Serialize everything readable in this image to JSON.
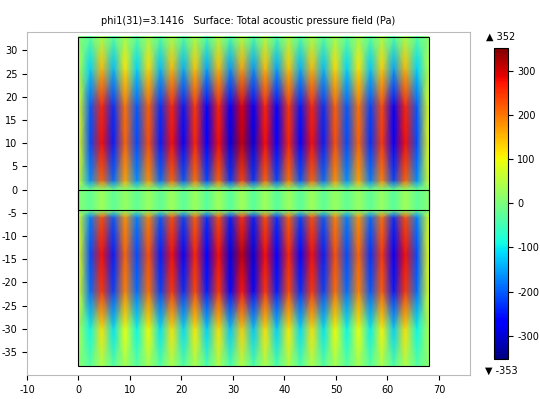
{
  "chart_data": {
    "type": "heatmap",
    "title": "phi1(31)=3.1416   Surface: Total acoustic pressure field (Pa)",
    "xlim": [
      -10,
      76
    ],
    "xticks": [
      -10,
      0,
      10,
      20,
      30,
      40,
      50,
      60,
      70
    ],
    "ylim": [
      -40,
      34
    ],
    "yticks": [
      -35,
      -30,
      -25,
      -20,
      -15,
      -10,
      -5,
      0,
      5,
      10,
      15,
      20,
      25,
      30
    ],
    "x": [
      0,
      2.267,
      4.533,
      6.8,
      9.067,
      11.333,
      13.6,
      15.867,
      18.133,
      20.4,
      22.667,
      24.933,
      27.2,
      29.467,
      31.733,
      34,
      36.267,
      38.533,
      40.8,
      43.067,
      45.333,
      47.6,
      49.867,
      52.133,
      54.4,
      56.667,
      58.933,
      61.2,
      63.467,
      65.733,
      68
    ],
    "y": [
      -38,
      -30,
      -22,
      -14,
      -6,
      -4.5,
      0,
      2,
      10,
      18,
      26,
      33
    ],
    "cells": [
      [
        15,
        -36,
        46,
        -41,
        36,
        -36,
        38,
        -41,
        46,
        -43,
        43,
        -46,
        46,
        -48,
        51,
        -48,
        46,
        -46,
        43,
        -43,
        46,
        -41,
        38,
        -36,
        36,
        -38,
        41,
        -46,
        46,
        -36,
        15
      ],
      [
        41,
        -95,
        122,
        -109,
        95,
        -95,
        102,
        -109,
        122,
        -116,
        116,
        -122,
        122,
        -129,
        136,
        -129,
        122,
        -122,
        116,
        -116,
        122,
        -109,
        102,
        -95,
        95,
        -102,
        109,
        -122,
        122,
        -95,
        41
      ],
      [
        82,
        -190,
        245,
        -218,
        190,
        -190,
        204,
        -218,
        245,
        -231,
        231,
        -245,
        245,
        -258,
        272,
        -258,
        245,
        -245,
        231,
        -231,
        245,
        -218,
        204,
        -190,
        190,
        -204,
        218,
        -245,
        245,
        -190,
        82
      ],
      [
        92,
        -214,
        275,
        -245,
        214,
        -214,
        230,
        -245,
        275,
        -260,
        260,
        -275,
        275,
        -291,
        306,
        -291,
        275,
        -275,
        260,
        -260,
        275,
        -245,
        230,
        -214,
        214,
        -230,
        245,
        -275,
        275,
        -214,
        92
      ],
      [
        77,
        -179,
        230,
        -204,
        179,
        -179,
        191,
        -204,
        230,
        -217,
        217,
        -230,
        230,
        -242,
        255,
        -242,
        230,
        -230,
        217,
        -217,
        230,
        -204,
        191,
        -179,
        179,
        -191,
        204,
        -230,
        230,
        -179,
        77
      ],
      [
        10,
        -24,
        31,
        -27,
        24,
        -24,
        26,
        -27,
        31,
        -29,
        29,
        -31,
        31,
        -32,
        34,
        -32,
        31,
        -31,
        29,
        -29,
        31,
        -27,
        26,
        -24,
        24,
        -26,
        27,
        -31,
        31,
        -24,
        10
      ],
      [
        10,
        -24,
        31,
        -27,
        24,
        -24,
        26,
        -27,
        31,
        -29,
        29,
        -31,
        31,
        -32,
        34,
        -32,
        31,
        -31,
        29,
        -29,
        31,
        -27,
        26,
        -24,
        24,
        -26,
        27,
        -31,
        31,
        -24,
        10
      ],
      [
        71,
        -167,
        214,
        -190,
        167,
        -167,
        179,
        -190,
        214,
        -202,
        202,
        -214,
        214,
        -226,
        238,
        -226,
        214,
        -214,
        202,
        -202,
        214,
        -190,
        179,
        -167,
        167,
        -179,
        190,
        -214,
        214,
        -167,
        71
      ],
      [
        92,
        -214,
        275,
        -245,
        214,
        -214,
        230,
        -245,
        275,
        -260,
        260,
        -275,
        275,
        -291,
        306,
        -291,
        275,
        -275,
        260,
        -260,
        275,
        -245,
        230,
        -214,
        214,
        -230,
        245,
        -275,
        275,
        -214,
        92
      ],
      [
        87,
        -202,
        260,
        -231,
        202,
        -202,
        217,
        -231,
        260,
        -246,
        246,
        -260,
        260,
        -275,
        289,
        -275,
        260,
        -260,
        246,
        -246,
        260,
        -231,
        217,
        -202,
        202,
        -217,
        231,
        -260,
        260,
        -202,
        87
      ],
      [
        51,
        -119,
        153,
        -136,
        119,
        -119,
        128,
        -136,
        153,
        -145,
        145,
        -153,
        153,
        -162,
        170,
        -162,
        153,
        -153,
        145,
        -145,
        153,
        -136,
        128,
        -119,
        119,
        -128,
        136,
        -153,
        153,
        -119,
        51
      ],
      [
        15,
        -36,
        46,
        -41,
        36,
        -36,
        38,
        -41,
        46,
        -43,
        43,
        -46,
        46,
        -48,
        51,
        -48,
        46,
        -46,
        43,
        -43,
        46,
        -41,
        38,
        -36,
        36,
        -38,
        41,
        -46,
        46,
        -36,
        15
      ]
    ],
    "plate": {
      "x": [
        0,
        68
      ],
      "y": [
        -4.5,
        0
      ]
    },
    "colorbar": {
      "lim": [
        -353,
        352
      ],
      "ticks": [
        -300,
        -200,
        -100,
        0,
        100,
        200,
        300
      ],
      "max_marker": "▲",
      "min_marker": "▼"
    }
  }
}
